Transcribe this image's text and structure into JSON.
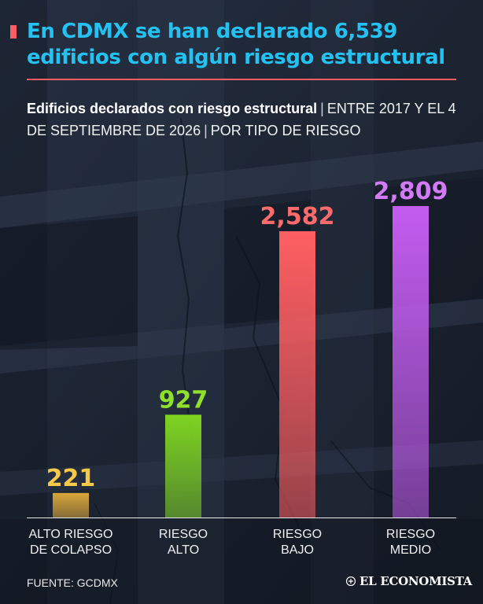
{
  "headline": "En CDMX se han declarado 6,539 edificios con algún riesgo estructural",
  "subtitle": {
    "main": "Edificios declarados con riesgo estructural",
    "period": "ENTRE 2017 Y EL 4 DE SEPTIEMBRE DE 2026",
    "breakdown": "POR TIPO DE RIESGO"
  },
  "source": "FUENTE: GCDMX",
  "brand": "EL ECONOMISTA",
  "colors": {
    "headline": "#23c2f3",
    "rule": "#ff5f62"
  },
  "chart_data": {
    "type": "bar",
    "categories": [
      [
        "ALTO RIESGO",
        "DE COLAPSO"
      ],
      [
        "RIESGO",
        "ALTO"
      ],
      [
        "RIESGO",
        "BAJO"
      ],
      [
        "RIESGO",
        "MEDIO"
      ]
    ],
    "values": [
      221,
      927,
      2582,
      2809
    ],
    "value_labels": [
      "221",
      "927",
      "2,582",
      "2,809"
    ],
    "colors": [
      "#d9a73a",
      "#7ed421",
      "#ff5f62",
      "#c35cf0"
    ],
    "label_colors": [
      "#f7c948",
      "#8fe02b",
      "#ff6b6b",
      "#d27af7"
    ],
    "ylim": [
      0,
      2809
    ],
    "grid": false,
    "legend": "none"
  }
}
